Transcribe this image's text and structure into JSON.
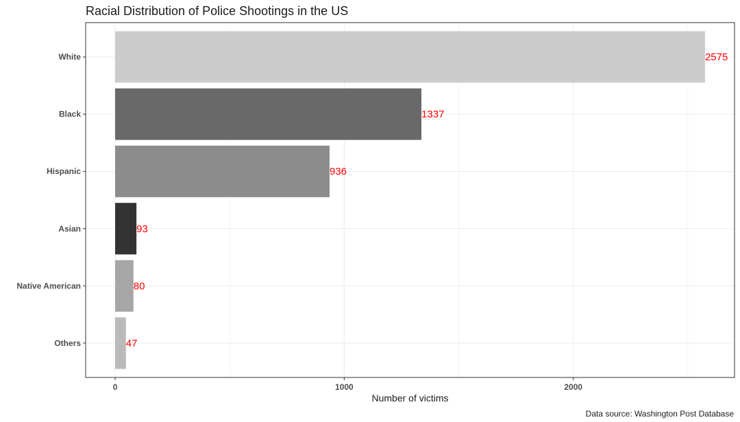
{
  "chart_data": {
    "type": "bar",
    "orientation": "horizontal",
    "title": "Racial Distribution of Police Shootings in the US",
    "xlabel": "Number of victims",
    "ylabel": "",
    "caption": "Data source: Washington Post Database",
    "categories": [
      "White",
      "Black",
      "Hispanic",
      "Asian",
      "Native American",
      "Others"
    ],
    "values": [
      2575,
      1337,
      936,
      93,
      80,
      47
    ],
    "data_labels": [
      "2575",
      "1337",
      "936",
      "93",
      "80",
      "47"
    ],
    "bar_colors": [
      "#cccccc",
      "#696969",
      "#8c8c8c",
      "#333333",
      "#a6a6a6",
      "#bababa"
    ],
    "xlim": [
      -128.75,
      2703.75
    ],
    "x_ticks": [
      0,
      1000,
      2000
    ],
    "x_tick_labels": [
      "0",
      "1000",
      "2000"
    ],
    "grid": true,
    "legend": "none",
    "colors": {
      "value_label": "#ff0000",
      "grid_major": "#ebebeb",
      "grid_minor": "#f5f5f5",
      "panel_border": "#333333"
    }
  }
}
